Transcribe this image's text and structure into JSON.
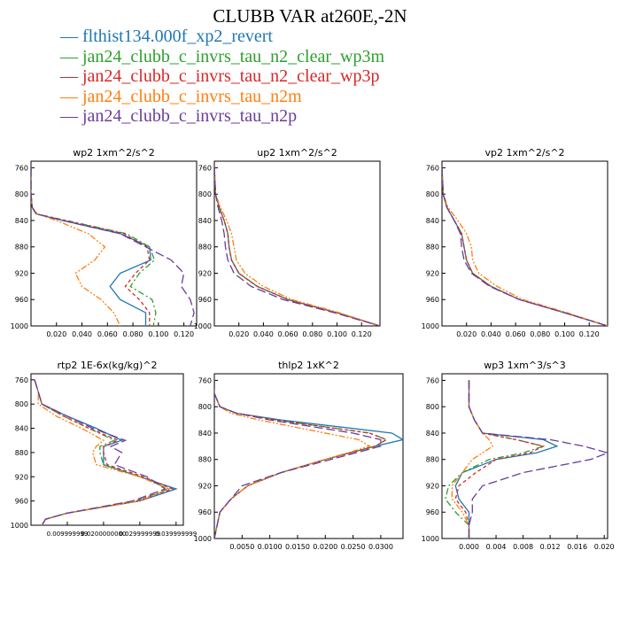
{
  "title": "CLUBB VAR at260E,-2N",
  "legend": [
    {
      "label": "flthist134.000f_xp2_revert",
      "color": "#1f77b4",
      "dash": "solid"
    },
    {
      "label": "jan24_clubb_c_invrs_tau_n2_clear_wp3m",
      "color": "#2ca02c",
      "dash": "dashdot"
    },
    {
      "label": "jan24_clubb_c_invrs_tau_n2_clear_wp3p",
      "color": "#d62728",
      "dash": "dash"
    },
    {
      "label": "jan24_clubb_c_invrs_tau_n2m",
      "color": "#ff7f0e",
      "dash": "dashdotdot"
    },
    {
      "label": "jan24_clubb_c_invrs_tau_n2p",
      "color": "#6a3d9a",
      "dash": "longdash"
    }
  ],
  "chart_data": [
    {
      "type": "line",
      "title": "wp2  1xm^2/s^2",
      "xlim": [
        0,
        0.13
      ],
      "ylim": [
        1000,
        750
      ],
      "xticks": [
        0.02,
        0.04,
        0.06,
        0.08,
        0.1,
        0.12
      ],
      "xtick_labels": [
        "0.020",
        "0.040",
        "0.060",
        "0.080",
        "0.100",
        "0.120"
      ],
      "yticks": [
        760,
        800,
        840,
        880,
        920,
        960,
        1000
      ],
      "y": [
        760,
        800,
        820,
        830,
        840,
        860,
        880,
        900,
        920,
        940,
        960,
        980,
        1000
      ],
      "series": [
        {
          "values": [
            0,
            0,
            0.001,
            0.004,
            0.025,
            0.07,
            0.093,
            0.094,
            0.07,
            0.062,
            0.07,
            0.09,
            0.09
          ]
        },
        {
          "values": [
            0,
            0,
            0.001,
            0.004,
            0.028,
            0.075,
            0.093,
            0.097,
            0.085,
            0.078,
            0.095,
            0.098,
            0.096
          ]
        },
        {
          "values": [
            0,
            0,
            0.001,
            0.004,
            0.027,
            0.073,
            0.091,
            0.093,
            0.082,
            0.074,
            0.085,
            0.093,
            0.093
          ]
        },
        {
          "values": [
            0,
            0,
            0.001,
            0.005,
            0.02,
            0.045,
            0.058,
            0.05,
            0.035,
            0.04,
            0.055,
            0.065,
            0.07
          ]
        },
        {
          "values": [
            0,
            0,
            0.001,
            0.004,
            0.025,
            0.07,
            0.09,
            0.11,
            0.12,
            0.118,
            0.125,
            0.128,
            0.125
          ]
        }
      ]
    },
    {
      "type": "line",
      "title": "up2  1xm^2/s^2",
      "xlim": [
        0,
        0.135
      ],
      "ylim": [
        1000,
        750
      ],
      "xticks": [
        0.02,
        0.04,
        0.06,
        0.08,
        0.1,
        0.12
      ],
      "xtick_labels": [
        "0.020",
        "0.040",
        "0.060",
        "0.080",
        "0.100",
        "0.120"
      ],
      "yticks": [
        760,
        800,
        840,
        880,
        920,
        960,
        1000
      ],
      "y": [
        760,
        800,
        820,
        840,
        860,
        880,
        900,
        920,
        940,
        960,
        980,
        1000
      ],
      "series": [
        {
          "values": [
            0,
            0.001,
            0.004,
            0.008,
            0.011,
            0.012,
            0.014,
            0.02,
            0.035,
            0.06,
            0.1,
            0.135
          ]
        },
        {
          "values": [
            0,
            0.001,
            0.004,
            0.008,
            0.011,
            0.012,
            0.014,
            0.02,
            0.035,
            0.06,
            0.1,
            0.135
          ]
        },
        {
          "values": [
            0,
            0.001,
            0.004,
            0.008,
            0.011,
            0.012,
            0.014,
            0.02,
            0.035,
            0.06,
            0.1,
            0.135
          ]
        },
        {
          "values": [
            0,
            0.001,
            0.005,
            0.01,
            0.014,
            0.016,
            0.018,
            0.025,
            0.04,
            0.063,
            0.102,
            0.135
          ]
        },
        {
          "values": [
            0,
            0.001,
            0.003,
            0.006,
            0.008,
            0.009,
            0.011,
            0.016,
            0.03,
            0.056,
            0.098,
            0.135
          ]
        }
      ]
    },
    {
      "type": "line",
      "title": "vp2  1xm^2/s^2",
      "xlim": [
        0,
        0.135
      ],
      "ylim": [
        1000,
        750
      ],
      "xticks": [
        0.02,
        0.04,
        0.06,
        0.08,
        0.1,
        0.12
      ],
      "xtick_labels": [
        "0.020",
        "0.040",
        "0.060",
        "0.080",
        "0.100",
        "0.120"
      ],
      "yticks": [
        760,
        800,
        840,
        880,
        920,
        960,
        1000
      ],
      "y": [
        760,
        800,
        820,
        840,
        860,
        880,
        900,
        920,
        940,
        960,
        980,
        1000
      ],
      "series": [
        {
          "values": [
            0,
            0.001,
            0.004,
            0.01,
            0.016,
            0.018,
            0.02,
            0.025,
            0.04,
            0.063,
            0.1,
            0.135
          ]
        },
        {
          "values": [
            0,
            0.001,
            0.004,
            0.01,
            0.016,
            0.018,
            0.02,
            0.025,
            0.04,
            0.063,
            0.1,
            0.135
          ]
        },
        {
          "values": [
            0,
            0.001,
            0.004,
            0.01,
            0.016,
            0.018,
            0.02,
            0.025,
            0.04,
            0.063,
            0.1,
            0.135
          ]
        },
        {
          "values": [
            0,
            0.001,
            0.005,
            0.013,
            0.02,
            0.024,
            0.025,
            0.03,
            0.045,
            0.066,
            0.102,
            0.135
          ]
        },
        {
          "values": [
            0,
            0.001,
            0.004,
            0.01,
            0.015,
            0.016,
            0.018,
            0.024,
            0.039,
            0.063,
            0.1,
            0.135
          ]
        }
      ]
    },
    {
      "type": "line",
      "title": "rtp2  1E-6x(kg/kg)^2",
      "xlim": [
        0,
        0.042
      ],
      "ylim": [
        1000,
        750
      ],
      "xticks": [
        0.01,
        0.02,
        0.03,
        0.04
      ],
      "xtick_labels": [
        "0.009999999",
        "0.0200000000",
        "0.029999999",
        "0.039999999"
      ],
      "yticks": [
        760,
        800,
        840,
        880,
        920,
        960,
        1000
      ],
      "y": [
        760,
        780,
        800,
        820,
        840,
        860,
        870,
        880,
        900,
        920,
        940,
        960,
        980,
        990,
        1000
      ],
      "series": [
        {
          "values": [
            0.001,
            0.002,
            0.003,
            0.01,
            0.018,
            0.025,
            0.02,
            0.02,
            0.02,
            0.03,
            0.04,
            0.03,
            0.01,
            0.004,
            0.003
          ]
        },
        {
          "values": [
            0.001,
            0.002,
            0.003,
            0.009,
            0.016,
            0.023,
            0.019,
            0.019,
            0.02,
            0.03,
            0.038,
            0.029,
            0.01,
            0.004,
            0.003
          ]
        },
        {
          "values": [
            0.001,
            0.002,
            0.003,
            0.009,
            0.016,
            0.024,
            0.02,
            0.02,
            0.021,
            0.031,
            0.039,
            0.029,
            0.01,
            0.004,
            0.003
          ]
        },
        {
          "values": [
            0.001,
            0.002,
            0.002,
            0.007,
            0.014,
            0.02,
            0.018,
            0.017,
            0.018,
            0.03,
            0.038,
            0.03,
            0.01,
            0.004,
            0.003
          ]
        },
        {
          "values": [
            0.001,
            0.002,
            0.003,
            0.01,
            0.017,
            0.026,
            0.022,
            0.025,
            0.023,
            0.032,
            0.037,
            0.028,
            0.01,
            0.004,
            0.003
          ]
        }
      ]
    },
    {
      "type": "line",
      "title": "thlp2  1xK^2",
      "xlim": [
        0,
        0.034
      ],
      "ylim": [
        1000,
        750
      ],
      "xticks": [
        0.005,
        0.01,
        0.015,
        0.02,
        0.025,
        0.03
      ],
      "xtick_labels": [
        "0.0050",
        "0.0100",
        "0.0150",
        "0.0200",
        "0.0250",
        "0.0300"
      ],
      "yticks": [
        760,
        800,
        840,
        880,
        920,
        960,
        1000
      ],
      "y": [
        760,
        780,
        800,
        810,
        820,
        840,
        850,
        860,
        880,
        900,
        920,
        940,
        960,
        980,
        1000
      ],
      "series": [
        {
          "values": [
            0,
            0,
            0.001,
            0.004,
            0.012,
            0.032,
            0.034,
            0.029,
            0.02,
            0.012,
            0.006,
            0.003,
            0.001,
            0.0005,
            0
          ]
        },
        {
          "values": [
            0,
            0,
            0.001,
            0.004,
            0.011,
            0.028,
            0.031,
            0.029,
            0.02,
            0.012,
            0.006,
            0.003,
            0.001,
            0.0005,
            0
          ]
        },
        {
          "values": [
            0,
            0,
            0.001,
            0.004,
            0.011,
            0.028,
            0.031,
            0.029,
            0.02,
            0.012,
            0.006,
            0.003,
            0.001,
            0.0005,
            0
          ]
        },
        {
          "values": [
            0,
            0,
            0.001,
            0.003,
            0.008,
            0.02,
            0.026,
            0.028,
            0.02,
            0.012,
            0.006,
            0.003,
            0.001,
            0.0005,
            0
          ]
        },
        {
          "values": [
            0,
            0,
            0.001,
            0.004,
            0.01,
            0.025,
            0.03,
            0.03,
            0.021,
            0.012,
            0.005,
            0.003,
            0.001,
            0.0005,
            0
          ]
        }
      ]
    },
    {
      "type": "line",
      "title": "wp3  1xm^3/s^3",
      "xlim": [
        -0.004,
        0.0205
      ],
      "ylim": [
        1000,
        750
      ],
      "xticks": [
        0,
        0.004,
        0.008,
        0.012,
        0.016,
        0.02
      ],
      "xtick_labels": [
        "0.000",
        "0.004",
        "0.008",
        "0.012",
        "0.016",
        "0.020"
      ],
      "yticks": [
        760,
        800,
        840,
        880,
        920,
        960,
        1000
      ],
      "y": [
        760,
        800,
        820,
        840,
        850,
        860,
        870,
        880,
        900,
        920,
        940,
        960,
        980,
        1000
      ],
      "series": [
        {
          "values": [
            0,
            0,
            0.0008,
            0.002,
            0.011,
            0.013,
            0.01,
            0.004,
            -0.001,
            -0.002,
            -0.0015,
            0,
            0,
            0
          ]
        },
        {
          "values": [
            0,
            0,
            0.0008,
            0.002,
            0.007,
            0.011,
            0.008,
            0.003,
            -0.001,
            -0.003,
            -0.0035,
            -0.002,
            0,
            0
          ]
        },
        {
          "values": [
            0,
            0,
            0.0008,
            0.002,
            0.007,
            0.011,
            0.009,
            0.004,
            0.001,
            -0.0015,
            -0.002,
            -0.0005,
            0,
            0
          ]
        },
        {
          "values": [
            0,
            0,
            0.0008,
            0.002,
            0.003,
            0.0035,
            0.002,
            0.0005,
            -0.001,
            -0.0025,
            -0.0025,
            -0.001,
            0,
            0
          ]
        },
        {
          "values": [
            0,
            0,
            0.0008,
            0.002,
            0.012,
            0.017,
            0.0205,
            0.018,
            0.008,
            0.002,
            0.0005,
            0.0005,
            0,
            0
          ]
        }
      ]
    }
  ]
}
